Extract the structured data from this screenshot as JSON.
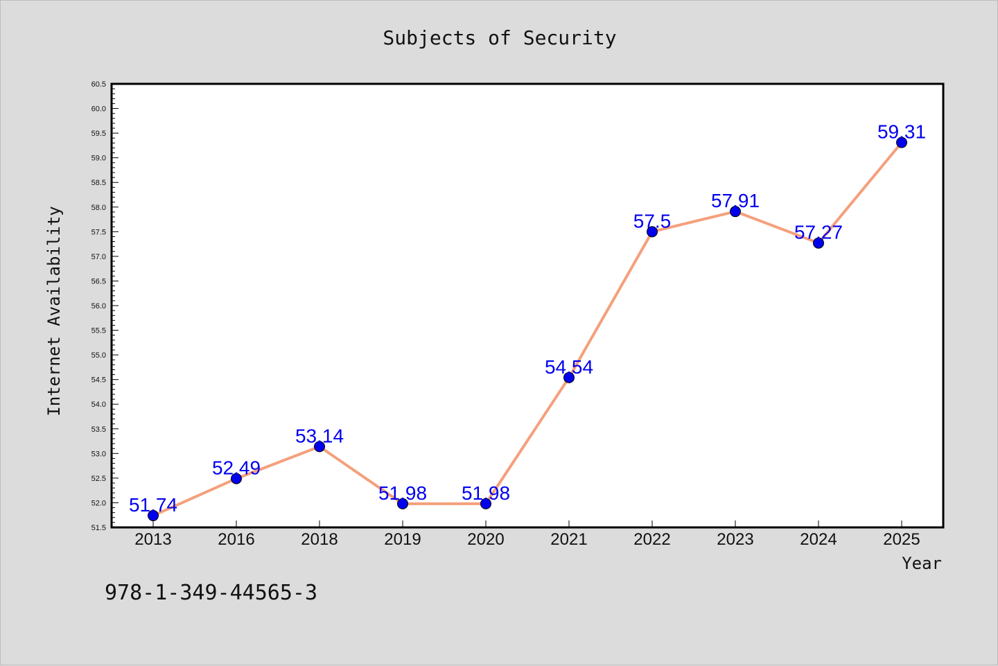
{
  "chart_data": {
    "type": "line",
    "title": "Subjects of Security",
    "xlabel": "Year",
    "ylabel": "Internet Availability",
    "categories": [
      "2013",
      "2016",
      "2018",
      "2019",
      "2020",
      "2021",
      "2022",
      "2023",
      "2024",
      "2025"
    ],
    "values": [
      51.74,
      52.49,
      53.14,
      51.98,
      51.98,
      54.54,
      57.5,
      57.91,
      57.27,
      59.31
    ],
    "data_labels": [
      "51.74",
      "52.49",
      "53.14",
      "51.98",
      "51.98",
      "54.54",
      "57.5",
      "57.91",
      "57.27",
      "59.31"
    ],
    "ylim": [
      51.5,
      60.5
    ],
    "yticks": [
      "51.5",
      "52.0",
      "52.5",
      "53.0",
      "53.5",
      "54.0",
      "54.5",
      "55.0",
      "55.5",
      "56.0",
      "56.5",
      "57.0",
      "57.5",
      "58.0",
      "58.5",
      "59.0",
      "59.5",
      "60.0",
      "60.5"
    ],
    "grid": false,
    "colors": {
      "line": "#f4a07c",
      "marker": "#0000ee",
      "label": "#0000ee",
      "background": "#dcdcdc",
      "plot_bg": "#ffffff"
    }
  },
  "footer_text": "978-1-349-44565-3"
}
